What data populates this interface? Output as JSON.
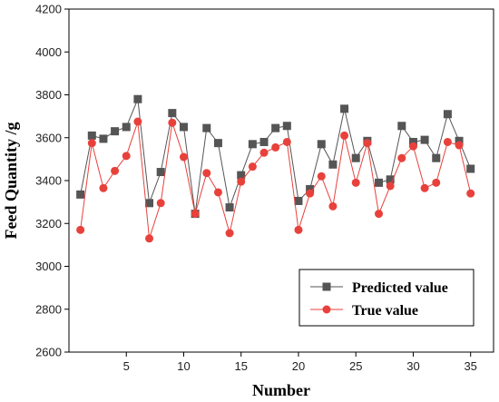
{
  "chart_data": {
    "type": "line",
    "xlabel": "Number",
    "ylabel": "Feed Quantity /g",
    "xlim": [
      0,
      37
    ],
    "ylim": [
      2600,
      4200
    ],
    "xticks": [
      5,
      10,
      15,
      20,
      25,
      30,
      35
    ],
    "yticks": [
      2600,
      2800,
      3000,
      3200,
      3400,
      3600,
      3800,
      4000,
      4200
    ],
    "grid": false,
    "legend_position": "bottom-right",
    "x": [
      1,
      2,
      3,
      4,
      5,
      6,
      7,
      8,
      9,
      10,
      11,
      12,
      13,
      14,
      15,
      16,
      17,
      18,
      19,
      20,
      21,
      22,
      23,
      24,
      25,
      26,
      27,
      28,
      29,
      30,
      31,
      32,
      33,
      34,
      35
    ],
    "series": [
      {
        "name": "Predicted value",
        "color": "#555555",
        "marker": "square",
        "values": [
          3335,
          3610,
          3595,
          3630,
          3650,
          3780,
          3295,
          3440,
          3715,
          3650,
          3245,
          3645,
          3575,
          3275,
          3425,
          3570,
          3580,
          3645,
          3655,
          3305,
          3360,
          3570,
          3475,
          3735,
          3505,
          3585,
          3390,
          3405,
          3655,
          3580,
          3590,
          3505,
          3710,
          3585,
          3455
        ]
      },
      {
        "name": "True value",
        "color": "#e8413b",
        "marker": "circle",
        "values": [
          3170,
          3575,
          3365,
          3445,
          3515,
          3675,
          3130,
          3295,
          3670,
          3510,
          3245,
          3435,
          3345,
          3155,
          3395,
          3465,
          3530,
          3555,
          3580,
          3170,
          3340,
          3420,
          3280,
          3610,
          3390,
          3575,
          3245,
          3375,
          3505,
          3560,
          3365,
          3390,
          3580,
          3565,
          3340
        ]
      }
    ]
  }
}
